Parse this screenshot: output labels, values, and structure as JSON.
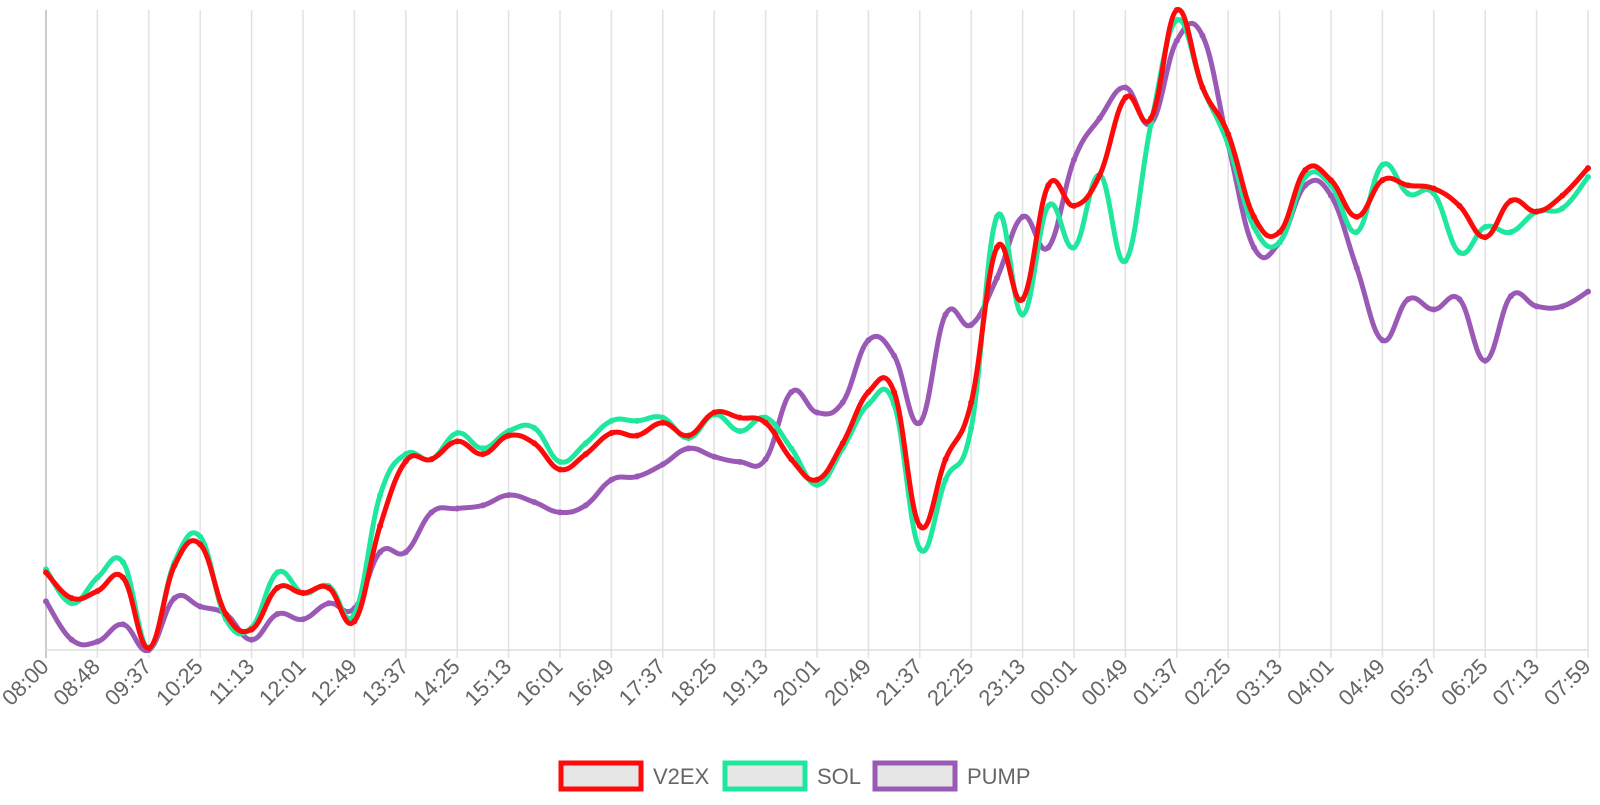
{
  "chart_data": {
    "type": "line",
    "legend": "bottom",
    "grid": true,
    "smooth": true,
    "categories": [
      "08:00",
      null,
      "08:48",
      null,
      "09:37",
      null,
      "10:25",
      null,
      "11:13",
      null,
      "12:01",
      null,
      "12:49",
      null,
      "13:37",
      null,
      "14:25",
      null,
      "15:13",
      null,
      "16:01",
      null,
      "16:49",
      null,
      "17:37",
      null,
      "18:25",
      null,
      "19:13",
      null,
      "20:01",
      null,
      "20:49",
      null,
      "21:37",
      null,
      "22:25",
      null,
      "23:13",
      null,
      "00:01",
      null,
      "00:49",
      null,
      "01:37",
      null,
      "02:25",
      null,
      "03:13",
      null,
      "04:01",
      null,
      "04:49",
      null,
      "05:37",
      null,
      "06:25",
      null,
      "07:13",
      null,
      "07:59"
    ],
    "ylim": [
      0,
      100
    ],
    "series": [
      {
        "name": "V2EX",
        "color": "#ff0a0a",
        "values": [
          12.1,
          8.1,
          9.2,
          11.3,
          0.3,
          13.2,
          16.5,
          5.6,
          3.2,
          9.7,
          8.9,
          9.7,
          4.5,
          19.4,
          29.5,
          29.8,
          32.6,
          30.6,
          33.5,
          32.3,
          28.2,
          30.6,
          33.9,
          33.5,
          35.5,
          33.5,
          37.1,
          36.3,
          35.5,
          29.8,
          26.6,
          32.3,
          40.3,
          40.3,
          19.4,
          29.8,
          38.7,
          62.9,
          54.8,
          72.6,
          69.4,
          74.2,
          86.3,
          83.1,
          100,
          87.9,
          80.6,
          67.7,
          65.3,
          75,
          73.4,
          67.7,
          73.4,
          72.6,
          72.1,
          69.4,
          64.5,
          70.2,
          68.5,
          71,
          75.3
        ]
      },
      {
        "name": "SOL",
        "color": "#1fe89e",
        "values": [
          12.6,
          7.3,
          11.3,
          13.7,
          0.3,
          13.7,
          17.7,
          4.8,
          3.5,
          12.1,
          8.9,
          10,
          5.6,
          24.2,
          30.6,
          29.8,
          33.9,
          31.5,
          34.2,
          34.7,
          29.4,
          32.3,
          35.8,
          35.8,
          36.3,
          33.1,
          36.8,
          34.2,
          36.3,
          31.5,
          25.8,
          31.5,
          38.4,
          38.4,
          15.8,
          26.6,
          34.7,
          67.7,
          52.4,
          69.4,
          62.9,
          74.2,
          60.8,
          82.3,
          98.4,
          87.9,
          79,
          66.1,
          63.7,
          73.9,
          72.6,
          65.3,
          75.8,
          71.3,
          71.3,
          62.1,
          66.1,
          65.3,
          68.5,
          69,
          73.9
        ]
      },
      {
        "name": "PUMP",
        "color": "#9b59b6",
        "values": [
          7.6,
          1.6,
          1.3,
          4,
          0,
          8.1,
          6.8,
          5.6,
          1.6,
          5.6,
          4.8,
          7.3,
          6.5,
          15.3,
          15.3,
          21.5,
          22.1,
          22.6,
          24.2,
          23.1,
          21.5,
          22.6,
          26.6,
          27.1,
          29,
          31.5,
          30.2,
          29.4,
          29.8,
          40.3,
          37.1,
          38.7,
          48.4,
          46,
          35.5,
          52.4,
          50.8,
          58.1,
          67.7,
          62.9,
          76.6,
          83.1,
          87.9,
          82.3,
          95.2,
          96,
          79,
          62.9,
          63.7,
          72.6,
          71,
          59.7,
          48.4,
          54.8,
          53.2,
          54.8,
          45.2,
          55.3,
          53.7,
          53.7,
          56
        ]
      }
    ]
  }
}
